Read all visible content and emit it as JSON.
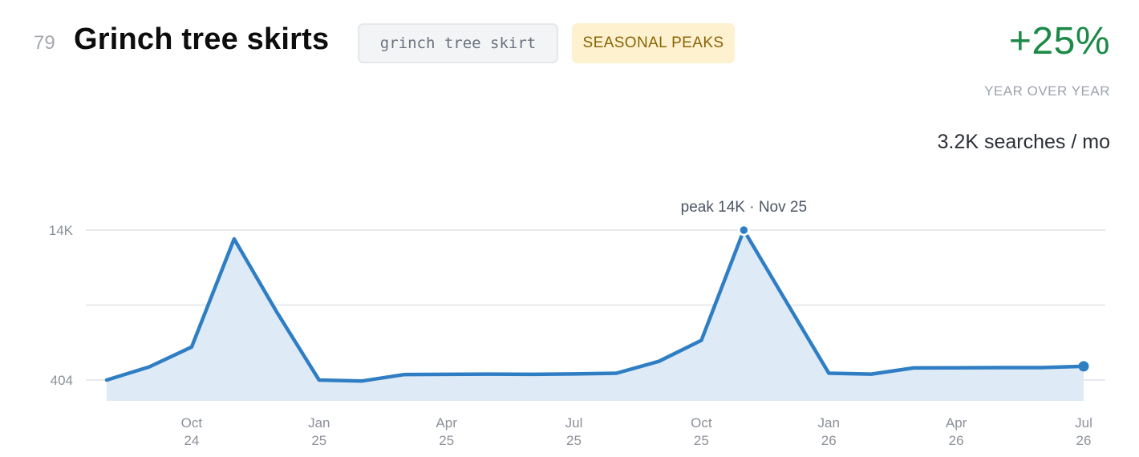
{
  "header": {
    "rank": "79",
    "title": "Grinch tree skirts",
    "keyword": "grinch tree skirt",
    "badge": "SEASONAL PEAKS",
    "growth": "+25%",
    "growth_label": "YEAR OVER YEAR",
    "volume": "3.2K searches / mo"
  },
  "colors": {
    "line": "#2f7ec4",
    "area": "#deebf7",
    "growth": "#1b8a46",
    "badge_bg": "#fdf1cf",
    "badge_text": "#8a6306"
  },
  "chart_data": {
    "type": "area",
    "x": [
      "2024-08",
      "2024-09",
      "2024-10",
      "2024-11",
      "2024-12",
      "2025-01",
      "2025-02",
      "2025-03",
      "2025-04",
      "2025-05",
      "2025-06",
      "2025-07",
      "2025-08",
      "2025-09",
      "2025-10",
      "2025-11",
      "2025-12",
      "2026-01",
      "2026-02",
      "2026-03",
      "2026-04",
      "2026-05",
      "2026-06",
      "2026-07"
    ],
    "series": [
      {
        "values": [
          404,
          1600,
          3400,
          13200,
          6600,
          404,
          310,
          900,
          920,
          940,
          920,
          960,
          1020,
          2100,
          4000,
          14000,
          7500,
          1020,
          940,
          1500,
          1510,
          1530,
          1530,
          1650
        ]
      }
    ],
    "y_ticks": [
      {
        "value": 404,
        "label": "404"
      },
      {
        "value": 14000,
        "label": "14K"
      }
    ],
    "x_ticks": [
      {
        "x": "2024-10",
        "label": [
          "Oct",
          "24"
        ]
      },
      {
        "x": "2025-01",
        "label": [
          "Jan",
          "25"
        ]
      },
      {
        "x": "2025-04",
        "label": [
          "Apr",
          "25"
        ]
      },
      {
        "x": "2025-07",
        "label": [
          "Jul",
          "25"
        ]
      },
      {
        "x": "2025-10",
        "label": [
          "Oct",
          "25"
        ]
      },
      {
        "x": "2026-01",
        "label": [
          "Jan",
          "26"
        ]
      },
      {
        "x": "2026-04",
        "label": [
          "Apr",
          "26"
        ]
      },
      {
        "x": "2026-07",
        "label": [
          "Jul",
          "26"
        ]
      }
    ],
    "ylim": [
      -1500,
      14000
    ],
    "grid": true,
    "annotation": {
      "x": "2025-11",
      "value": 14000,
      "text": "peak 14K · Nov 25"
    },
    "end_marker": true
  }
}
